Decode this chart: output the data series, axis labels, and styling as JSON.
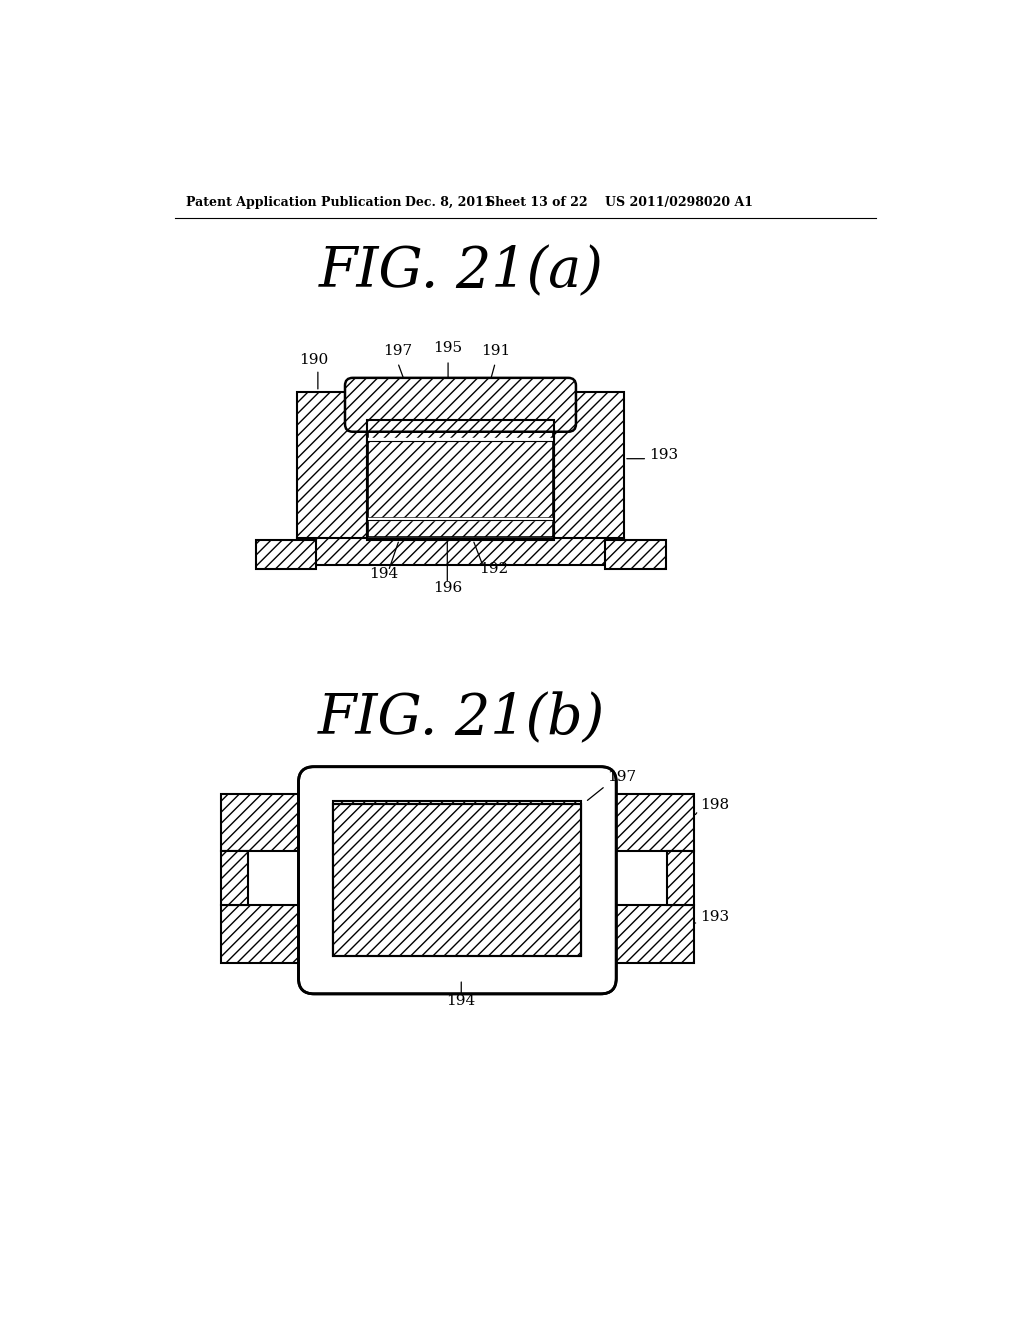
{
  "bg_color": "#ffffff",
  "header_text": "Patent Application Publication",
  "header_date": "Dec. 8, 2011",
  "header_sheet": "Sheet 13 of 22",
  "header_patent": "US 2011/0298020 A1",
  "fig_a_title": "FIG. 21(a)",
  "fig_b_title": "FIG. 21(b)",
  "line_color": "#000000",
  "label_190": "190",
  "label_191": "191",
  "label_192": "192",
  "label_193": "193",
  "label_194": "194",
  "label_195": "195",
  "label_196": "196",
  "label_197": "197",
  "label_198": "198"
}
